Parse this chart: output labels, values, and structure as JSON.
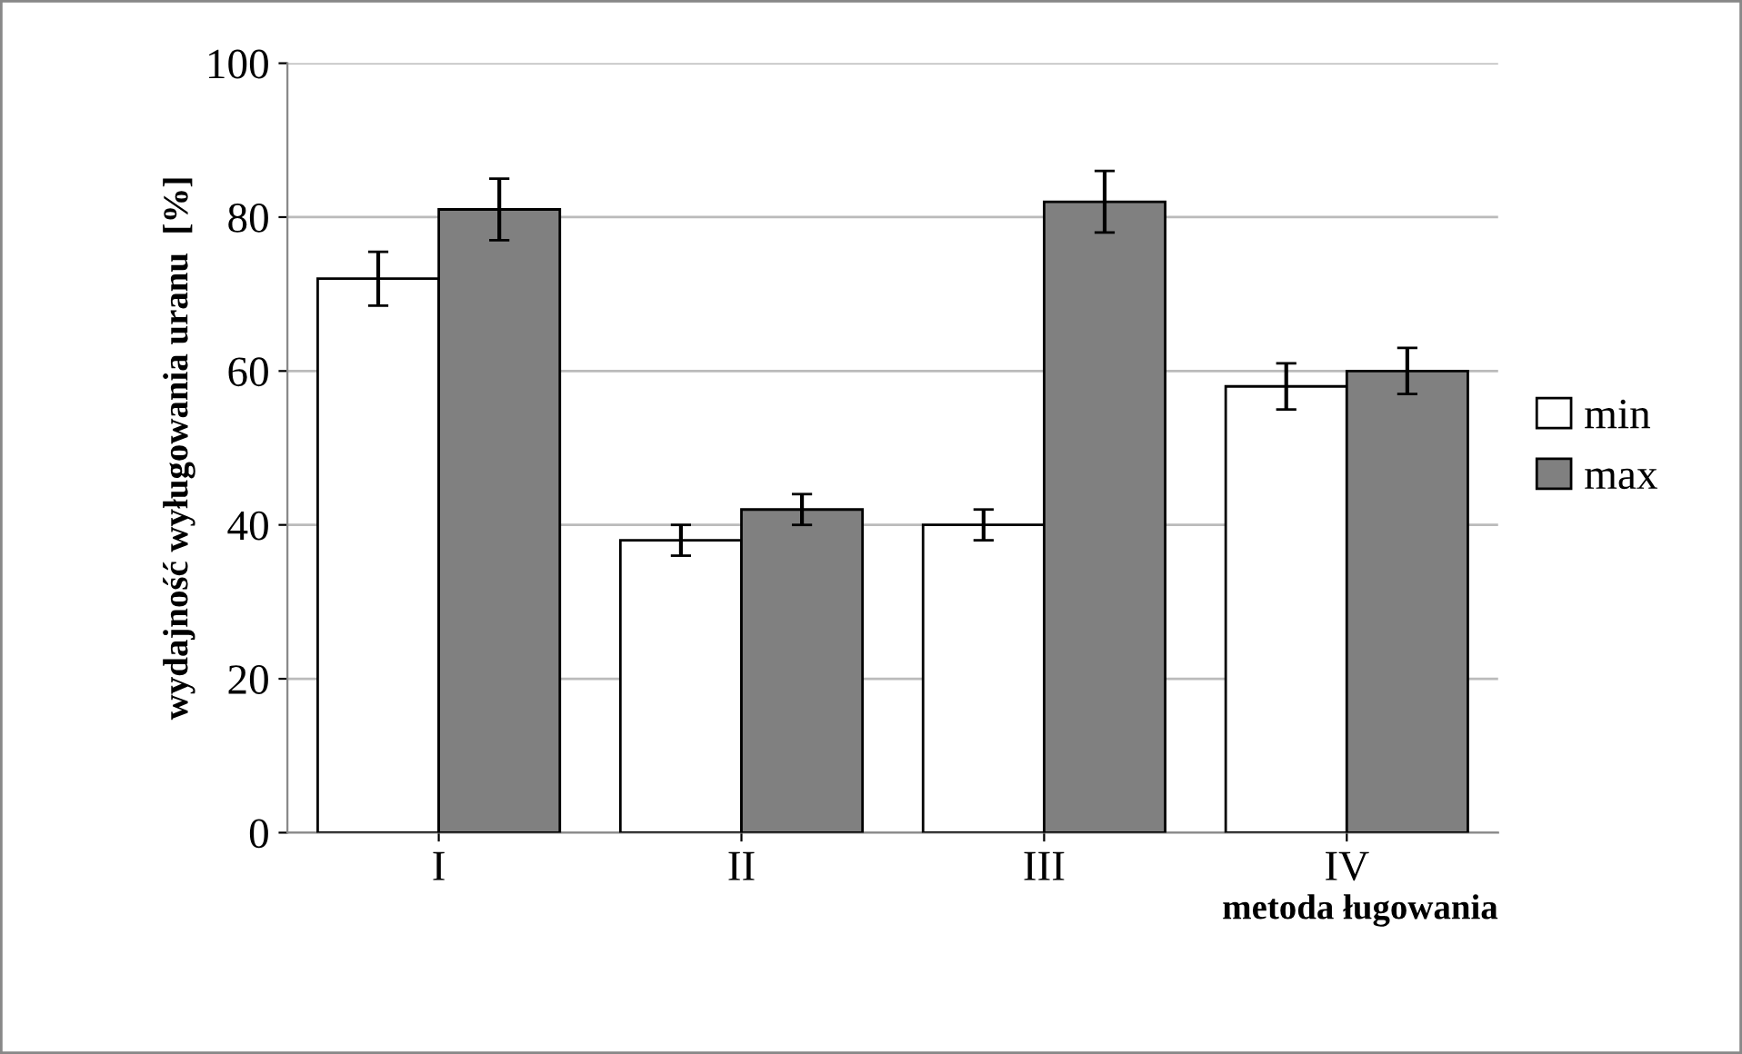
{
  "chart_data": {
    "type": "bar",
    "categories": [
      "I",
      "II",
      "III",
      "IV"
    ],
    "series": [
      {
        "name": "min",
        "color": "#ffffff",
        "values": [
          72,
          38,
          40,
          58
        ],
        "errors": [
          3.5,
          2,
          2,
          3
        ]
      },
      {
        "name": "max",
        "color": "#808080",
        "values": [
          81,
          42,
          82,
          60
        ],
        "errors": [
          4,
          2,
          4,
          3
        ]
      }
    ],
    "ylabel": "wydajność wyługowania uranu  [%]",
    "xlabel": "metoda ługowania",
    "ylim": [
      0,
      100
    ],
    "yticks": [
      0,
      20,
      40,
      60,
      80,
      100
    ],
    "grid": "y",
    "legend": "right"
  }
}
